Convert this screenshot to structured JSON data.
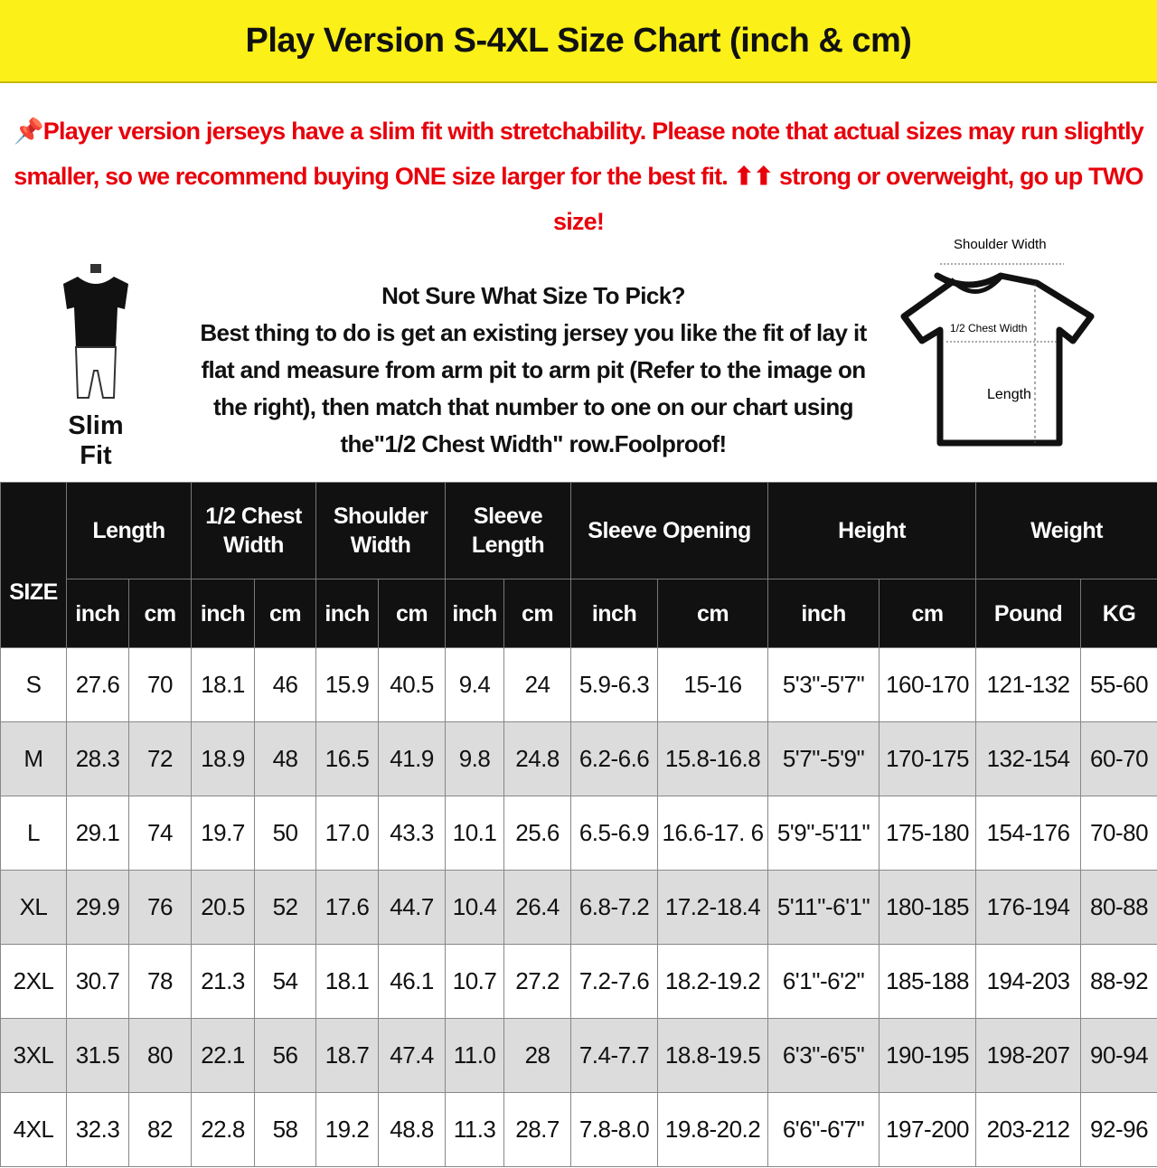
{
  "title": "Play Version S-4XL Size Chart (inch & cm)",
  "notice": {
    "icon": "pushpin-icon",
    "text": "Player version jerseys have a slim fit with stretchability. Please note that actual sizes may run slightly smaller, so we recommend buying ONE size larger for the best fit. ⬆⬆ strong or overweight, go up TWO size!",
    "color": "#e8000b"
  },
  "slim_fit": {
    "label": "Slim Fit"
  },
  "help": {
    "heading": "Not Sure What Size To Pick?",
    "body": "Best thing to do is get an existing jersey you like the fit of lay it flat and measure from arm pit to arm pit (Refer to the image on the right), then match that number to one on our chart using the\"1/2 Chest Width\" row.Foolproof!"
  },
  "diagram": {
    "shoulder": "Shoulder Width",
    "chest": "1/2 Chest Width",
    "length": "Length"
  },
  "table": {
    "size_header": "SIZE",
    "groups": [
      "Length",
      "1/2 Chest Width",
      "Shoulder Width",
      "Sleeve Length",
      "Sleeve Opening",
      "Height",
      "Weight"
    ],
    "subheaders": [
      "inch",
      "cm",
      "inch",
      "cm",
      "inch",
      "cm",
      "inch",
      "cm",
      "inch",
      "cm",
      "inch",
      "cm",
      "Pound",
      "KG"
    ],
    "rows": [
      [
        "S",
        "27.6",
        "70",
        "18.1",
        "46",
        "15.9",
        "40.5",
        "9.4",
        "24",
        "5.9-6.3",
        "15-16",
        "5'3\"-5'7\"",
        "160-170",
        "121-132",
        "55-60"
      ],
      [
        "M",
        "28.3",
        "72",
        "18.9",
        "48",
        "16.5",
        "41.9",
        "9.8",
        "24.8",
        "6.2-6.6",
        "15.8-16.8",
        "5'7\"-5'9\"",
        "170-175",
        "132-154",
        "60-70"
      ],
      [
        "L",
        "29.1",
        "74",
        "19.7",
        "50",
        "17.0",
        "43.3",
        "10.1",
        "25.6",
        "6.5-6.9",
        "16.6-17. 6",
        "5'9\"-5'11\"",
        "175-180",
        "154-176",
        "70-80"
      ],
      [
        "XL",
        "29.9",
        "76",
        "20.5",
        "52",
        "17.6",
        "44.7",
        "10.4",
        "26.4",
        "6.8-7.2",
        "17.2-18.4",
        "5'11\"-6'1\"",
        "180-185",
        "176-194",
        "80-88"
      ],
      [
        "2XL",
        "30.7",
        "78",
        "21.3",
        "54",
        "18.1",
        "46.1",
        "10.7",
        "27.2",
        "7.2-7.6",
        "18.2-19.2",
        "6'1\"-6'2\"",
        "185-188",
        "194-203",
        "88-92"
      ],
      [
        "3XL",
        "31.5",
        "80",
        "22.1",
        "56",
        "18.7",
        "47.4",
        "11.0",
        "28",
        "7.4-7.7",
        "18.8-19.5",
        "6'3\"-6'5\"",
        "190-195",
        "198-207",
        "90-94"
      ],
      [
        "4XL",
        "32.3",
        "82",
        "22.8",
        "58",
        "19.2",
        "48.8",
        "11.3",
        "28.7",
        "7.8-8.0",
        "19.8-20.2",
        "6'6\"-6'7\"",
        "197-200",
        "203-212",
        "92-96"
      ]
    ]
  }
}
